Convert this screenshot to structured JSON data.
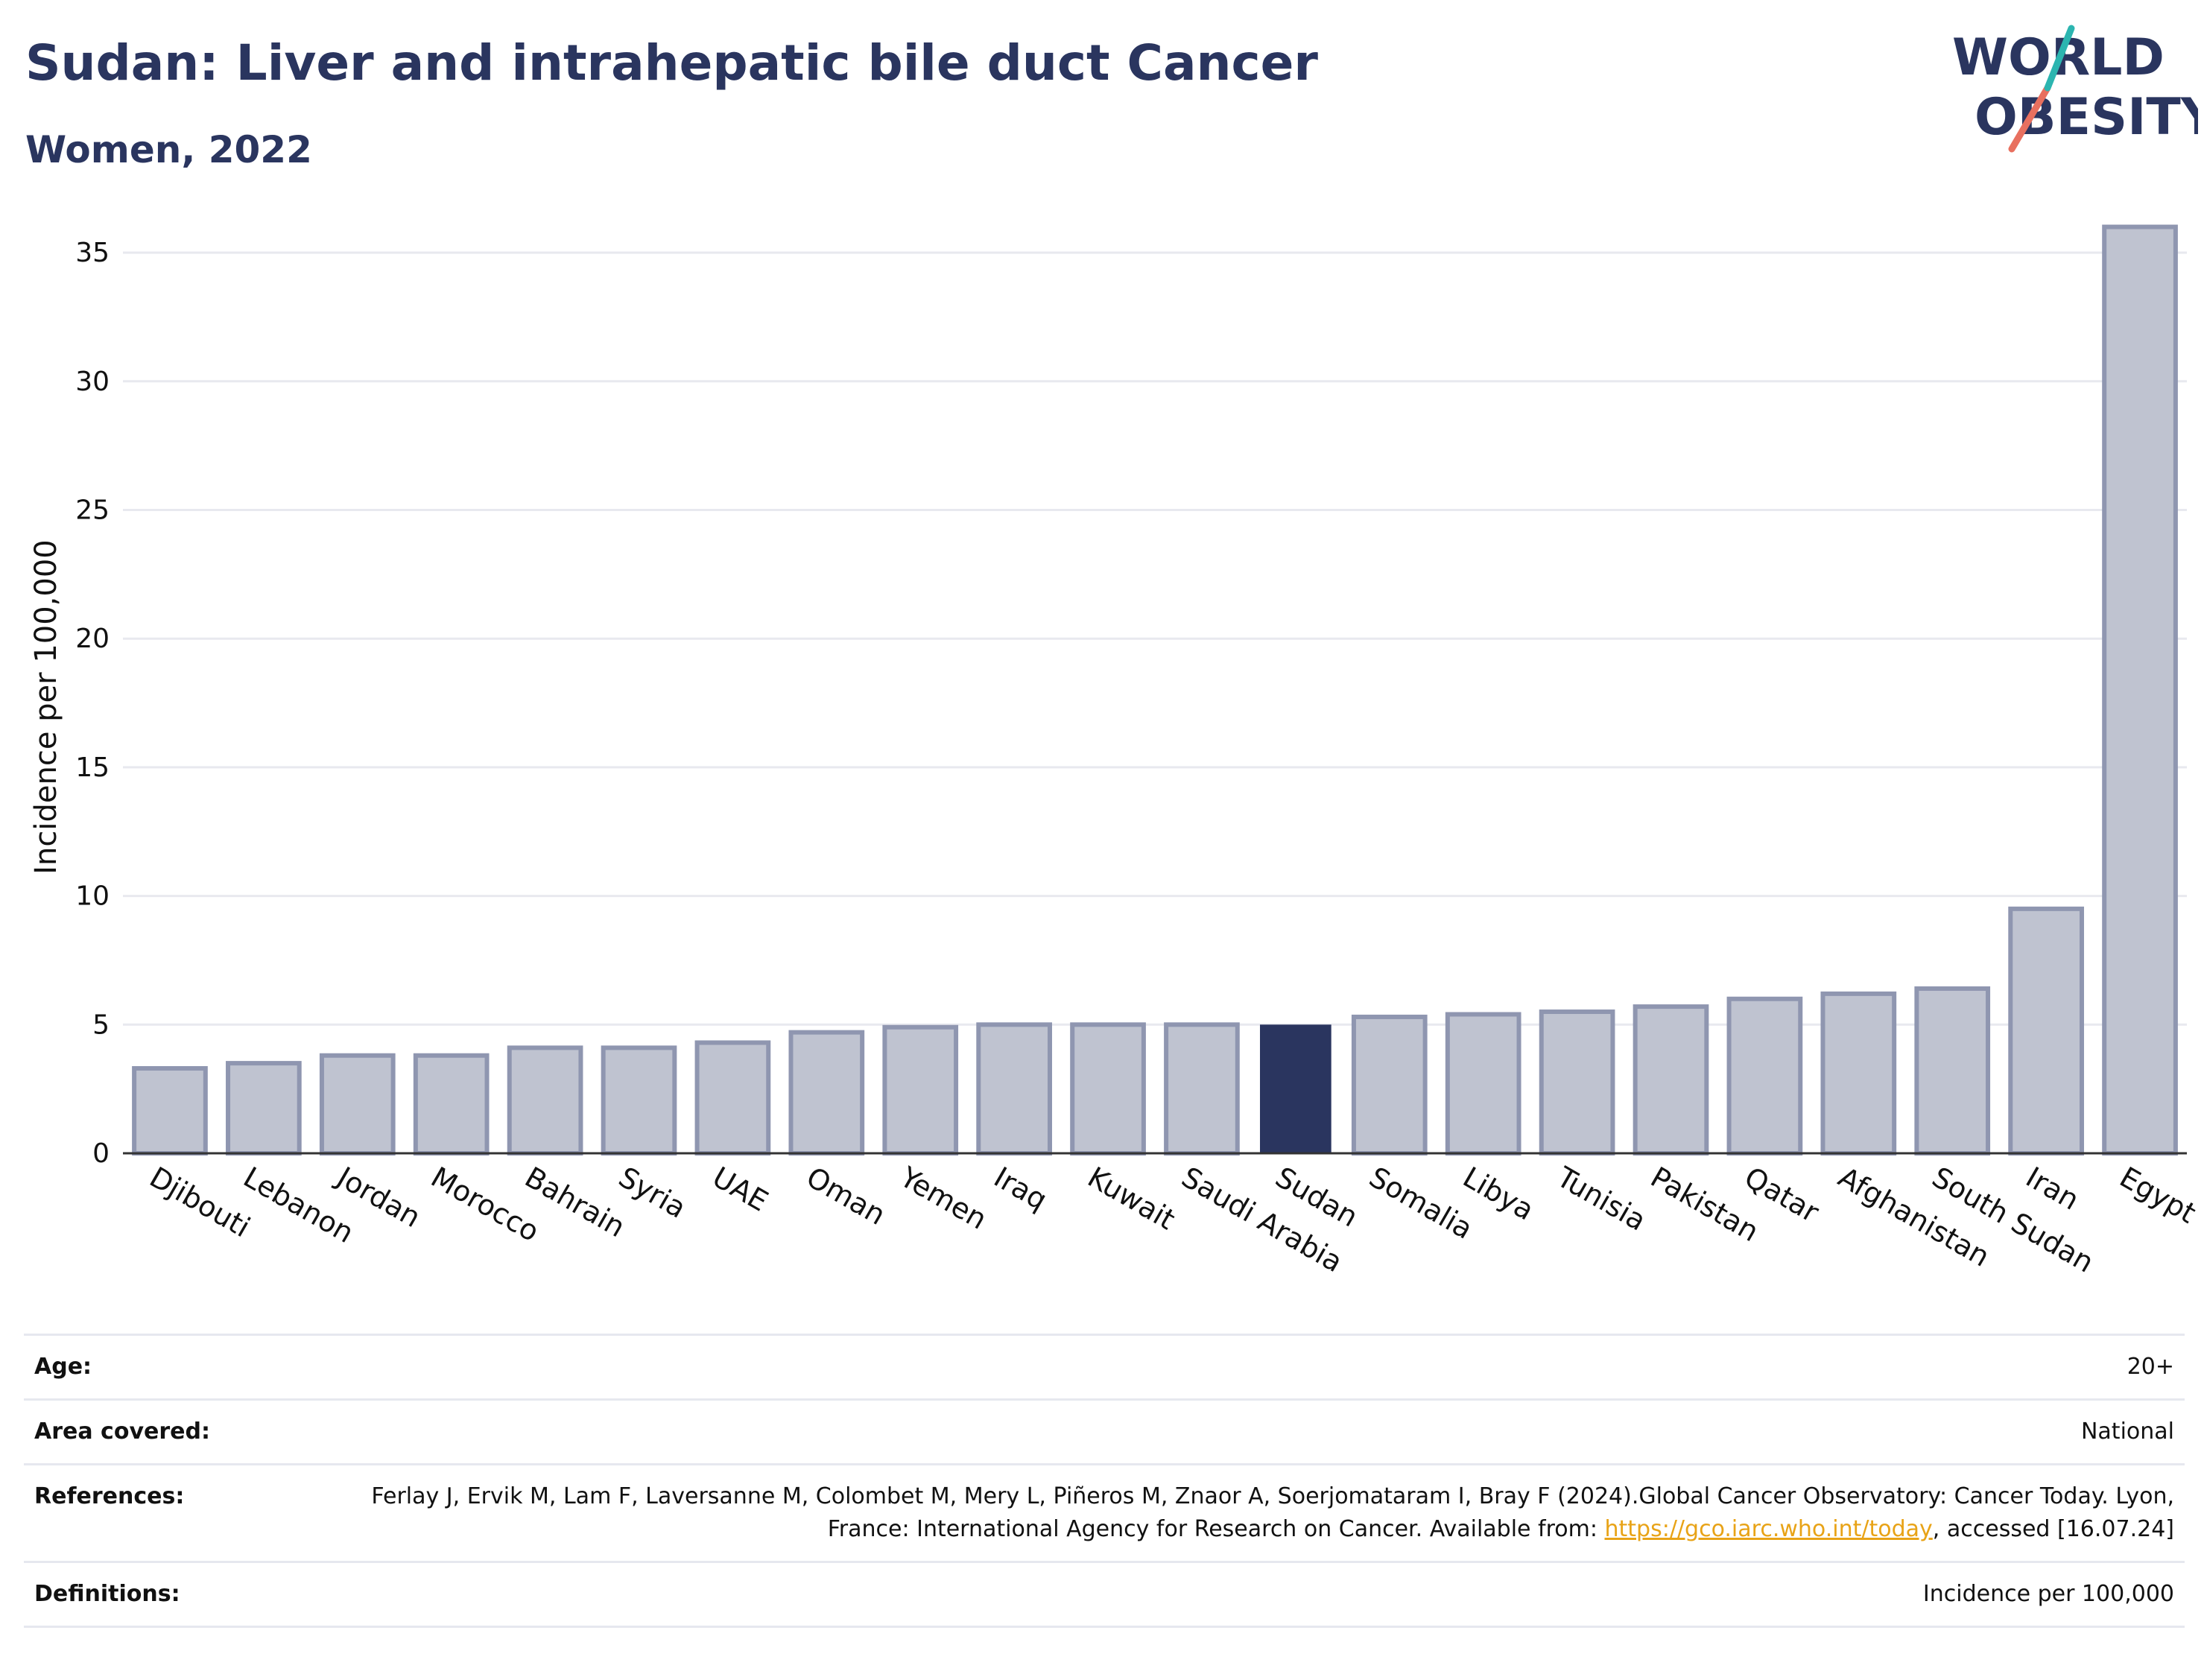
{
  "header": {
    "title": "Sudan: Liver and intrahepatic bile duct Cancer",
    "subtitle": "Women, 2022"
  },
  "logo": {
    "line1": "WORLD",
    "line2": "OBESITY"
  },
  "colors": {
    "highlight": "#2a355f",
    "bar": "#bfc3d0",
    "bar_edge": "#8f96b0",
    "grid": "#e8e9ef",
    "link": "#e8a317"
  },
  "chart_data": {
    "type": "bar",
    "ylabel": "Incidence per 100,000",
    "ylim": [
      0,
      37
    ],
    "yticks": [
      0,
      5,
      10,
      15,
      20,
      25,
      30,
      35
    ],
    "grid": true,
    "highlight": "Sudan",
    "categories": [
      "Djibouti",
      "Lebanon",
      "Jordan",
      "Morocco",
      "Bahrain",
      "Syria",
      "UAE",
      "Oman",
      "Yemen",
      "Iraq",
      "Kuwait",
      "Saudi Arabia",
      "Sudan",
      "Somalia",
      "Libya",
      "Tunisia",
      "Pakistan",
      "Qatar",
      "Afghanistan",
      "South Sudan",
      "Iran",
      "Egypt"
    ],
    "values": [
      3.3,
      3.5,
      3.8,
      3.8,
      4.1,
      4.1,
      4.3,
      4.7,
      4.9,
      5.0,
      5.0,
      5.0,
      5.0,
      5.3,
      5.4,
      5.5,
      5.7,
      6.0,
      6.2,
      6.4,
      9.5,
      36.0
    ]
  },
  "meta": {
    "age_label": "Age:",
    "age_value": "20+",
    "area_label": "Area covered:",
    "area_value": "National",
    "references_label": "References:",
    "references_text_1": "Ferlay J, Ervik M, Lam F, Laversanne M, Colombet M, Mery L, Piñeros M, Znaor A, Soerjomataram I, Bray F (2024).Global Cancer Observatory: Cancer Today. Lyon, France: International Agency for Research on Cancer. Available from: ",
    "references_link": "https://gco.iarc.who.int/today",
    "references_text_2": ", accessed [16.07.24]",
    "definitions_label": "Definitions:",
    "definitions_value": "Incidence per 100,000"
  }
}
